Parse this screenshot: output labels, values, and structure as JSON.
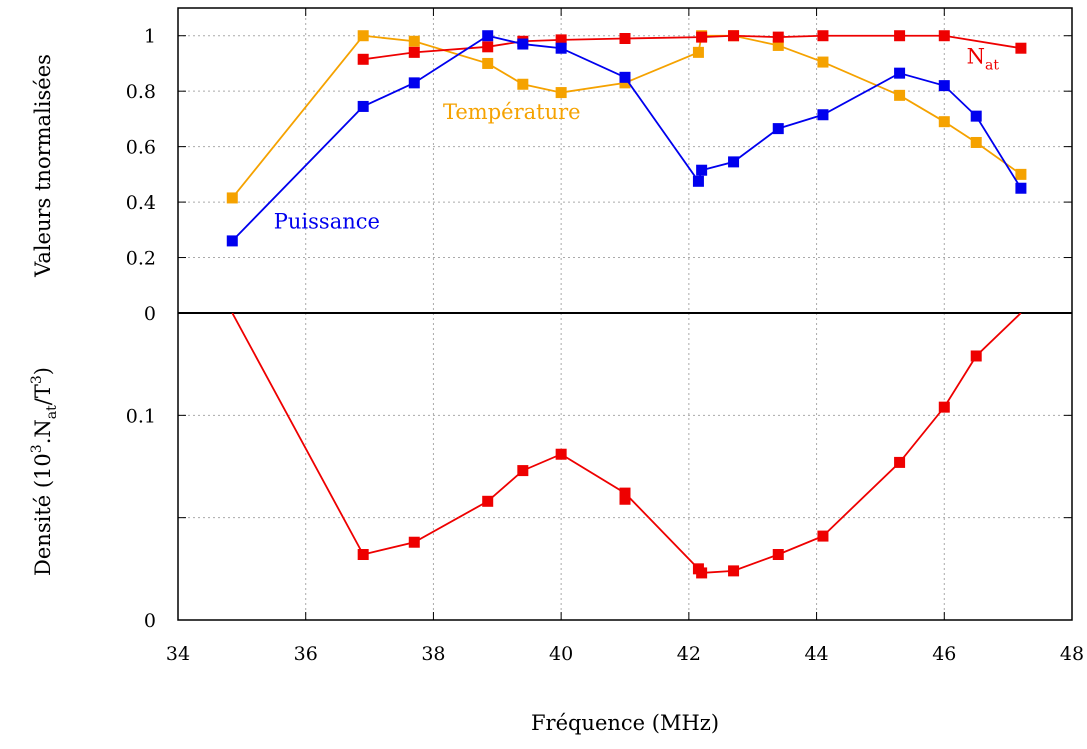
{
  "chart_data": [
    {
      "panel": "top",
      "type": "line",
      "ylabel": "Valeurs tnormalisées",
      "xlim": [
        34,
        48
      ],
      "ylim": [
        0,
        1.1
      ],
      "yticks": [
        0,
        0.2,
        0.4,
        0.6,
        0.8,
        1
      ],
      "ytick_labels": [
        "0",
        "0.2",
        "0.4",
        "0.6",
        "0.8",
        "1"
      ],
      "grid": true,
      "series": [
        {
          "name": "Puissance",
          "label_text": "Puissance",
          "color": "#0000ee",
          "x": [
            34.85,
            36.9,
            37.7,
            38.85,
            39.4,
            40.0,
            41.0,
            42.15,
            42.2,
            42.7,
            43.4,
            44.1,
            45.3,
            46.0,
            46.5,
            47.2
          ],
          "y": [
            0.26,
            0.745,
            0.83,
            1.0,
            0.97,
            0.955,
            0.85,
            0.475,
            0.515,
            0.545,
            0.665,
            0.715,
            0.865,
            0.82,
            0.71,
            0.45
          ]
        },
        {
          "name": "Température",
          "label_text": "Température",
          "color": "#f5a200",
          "x": [
            34.85,
            36.9,
            37.7,
            38.85,
            39.4,
            40.0,
            41.0,
            42.15,
            42.2,
            42.7,
            43.4,
            44.1,
            45.3,
            46.0,
            46.5,
            47.2
          ],
          "y": [
            0.415,
            1.0,
            0.98,
            0.9,
            0.825,
            0.795,
            0.83,
            0.94,
            1.0,
            1.0,
            0.965,
            0.905,
            0.785,
            0.69,
            0.615,
            0.5
          ]
        },
        {
          "name": "Nat",
          "label_main": "N",
          "label_sub": "at",
          "color": "#ee0000",
          "x": [
            36.9,
            37.7,
            38.85,
            39.4,
            40.0,
            41.0,
            42.2,
            42.7,
            43.4,
            44.1,
            45.3,
            46.0,
            47.2
          ],
          "y": [
            0.915,
            0.94,
            0.96,
            0.98,
            0.985,
            0.99,
            0.995,
            1.0,
            0.995,
            1.0,
            1.0,
            1.0,
            0.955
          ]
        }
      ]
    },
    {
      "panel": "bottom",
      "type": "line",
      "ylabel_main": "Densité (10",
      "ylabel_sup1": "3",
      "ylabel_mid": ".N",
      "ylabel_sub": "at",
      "ylabel_mid2": "/T",
      "ylabel_sup2": "3",
      "ylabel_end": ")",
      "xlabel": "Fréquence (MHz)",
      "xlim": [
        34,
        48
      ],
      "ylim": [
        0,
        0.15
      ],
      "yticks": [
        0,
        0.05,
        0.1,
        0.15
      ],
      "ytick_labels": [
        "0",
        "",
        "0.1",
        ""
      ],
      "xticks": [
        34,
        36,
        38,
        40,
        42,
        44,
        46,
        48
      ],
      "xtick_labels": [
        "34",
        "36",
        "38",
        "40",
        "42",
        "44",
        "46",
        "48"
      ],
      "grid": true,
      "series": [
        {
          "name": "Densité",
          "color": "#ee0000",
          "x": [
            34.85,
            36.9,
            37.7,
            38.85,
            39.4,
            40.0,
            41.0,
            42.15,
            42.2,
            42.7,
            43.4,
            44.1,
            45.3,
            46.0,
            46.5,
            47.2
          ],
          "y": [
            0.15,
            0.032,
            0.038,
            0.058,
            0.073,
            0.081,
            0.062,
            0.025,
            0.023,
            0.024,
            0.032,
            0.041,
            0.077,
            0.104,
            0.129,
            0.15
          ],
          "markers": [
            false,
            true,
            true,
            true,
            true,
            true,
            true,
            true,
            true,
            true,
            true,
            true,
            true,
            true,
            true,
            false
          ],
          "extra_points": [
            {
              "x": 41.0,
              "y": 0.059
            }
          ]
        }
      ]
    }
  ]
}
